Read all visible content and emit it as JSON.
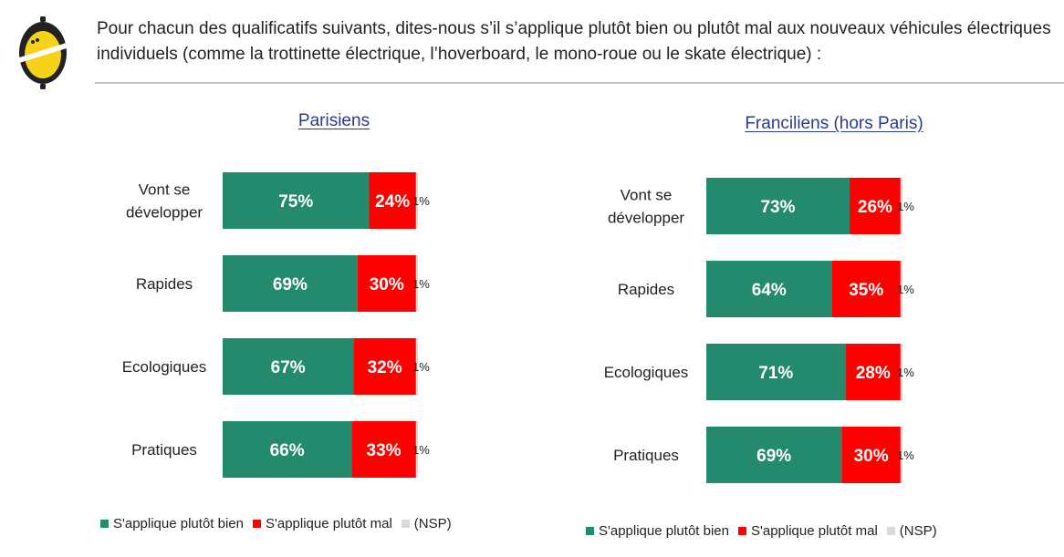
{
  "header": {
    "question": "Pour chacun des qualificatifs suivants, dites-nous s’il s’applique plutôt bien ou plutôt mal aux nouveaux véhicules électriques individuels (comme la trottinette électrique, l’hoverboard, le mono-roue ou le skate électrique) :"
  },
  "colors": {
    "bien": "#238a6e",
    "mal": "#ff0000",
    "nsp": "#d9d9d9"
  },
  "chart_data": [
    {
      "type": "bar",
      "stacked": true,
      "orientation": "horizontal",
      "title": "Parisiens",
      "categories": [
        "Vont se\ndévelopper",
        "Rapides",
        "Ecologiques",
        "Pratiques"
      ],
      "series": [
        {
          "name": "S'applique plutôt bien",
          "values": [
            75,
            69,
            67,
            66
          ]
        },
        {
          "name": "S'applique plutôt mal",
          "values": [
            24,
            30,
            32,
            33
          ]
        },
        {
          "name": "(NSP)",
          "values": [
            1,
            1,
            1,
            1
          ]
        }
      ],
      "value_suffix": "%",
      "xlim": [
        0,
        100
      ],
      "grid": false,
      "legend": "bottom"
    },
    {
      "type": "bar",
      "stacked": true,
      "orientation": "horizontal",
      "title": "Franciliens (hors Paris)",
      "categories": [
        "Vont se\ndévelopper",
        "Rapides",
        "Ecologiques",
        "Pratiques"
      ],
      "series": [
        {
          "name": "S'applique plutôt bien",
          "values": [
            73,
            64,
            71,
            69
          ]
        },
        {
          "name": "S'applique plutôt mal",
          "values": [
            26,
            35,
            28,
            30
          ]
        },
        {
          "name": "(NSP)",
          "values": [
            1,
            1,
            1,
            1
          ]
        }
      ],
      "value_suffix": "%",
      "xlim": [
        0,
        100
      ],
      "grid": false,
      "legend": "bottom"
    }
  ]
}
